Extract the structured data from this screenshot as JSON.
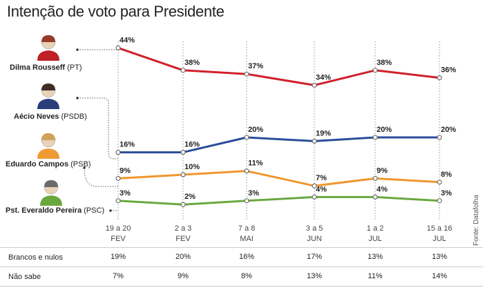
{
  "title": "Intenção de voto para Presidente",
  "source": "Fonte: Datafolha",
  "candidates": [
    {
      "name": "Dilma Rousseff",
      "party": "(PT)",
      "color": "#d0202a",
      "avatar": "photo-dilma"
    },
    {
      "name": "Aécio Neves",
      "party": "(PSDB)",
      "color": "#2a4c9a",
      "avatar": "photo-aecio"
    },
    {
      "name": "Eduardo Campos",
      "party": "(PSB)",
      "color": "#f0962e",
      "avatar": "photo-campos"
    },
    {
      "name": "Pst. Everaldo Pereira",
      "party": "(PSC)",
      "color": "#6aa83e",
      "avatar": "photo-everaldo"
    }
  ],
  "chart_data": {
    "type": "line",
    "title": "Intenção de voto para Presidente",
    "categories": [
      {
        "day": "19 a 20",
        "month": "FEV"
      },
      {
        "day": "2 a 3",
        "month": "FEV"
      },
      {
        "day": "7 a 8",
        "month": "MAI"
      },
      {
        "day": "3 a 5",
        "month": "JUN"
      },
      {
        "day": "1 a 2",
        "month": "JUL"
      },
      {
        "day": "15 a 16",
        "month": "JUL"
      }
    ],
    "ylim": [
      0,
      50
    ],
    "unit": "%",
    "grid": "vertical dotted",
    "series": [
      {
        "name": "Dilma Rousseff (PT)",
        "color": "#d0202a",
        "values": [
          44,
          38,
          37,
          34,
          38,
          36
        ]
      },
      {
        "name": "Aécio Neves (PSDB)",
        "color": "#2a4c9a",
        "values": [
          16,
          16,
          20,
          19,
          20,
          20
        ]
      },
      {
        "name": "Eduardo Campos (PSB)",
        "color": "#f0962e",
        "values": [
          9,
          10,
          11,
          7,
          9,
          8
        ]
      },
      {
        "name": "Pst. Everaldo Pereira (PSC)",
        "color": "#6aa83e",
        "values": [
          3,
          2,
          3,
          4,
          4,
          3
        ]
      }
    ]
  },
  "table": [
    {
      "label": "Brancos e nulos",
      "values": [
        "19%",
        "20%",
        "16%",
        "17%",
        "13%",
        "13%"
      ]
    },
    {
      "label": "Não sabe",
      "values": [
        "7%",
        "9%",
        "8%",
        "13%",
        "11%",
        "14%"
      ]
    }
  ]
}
